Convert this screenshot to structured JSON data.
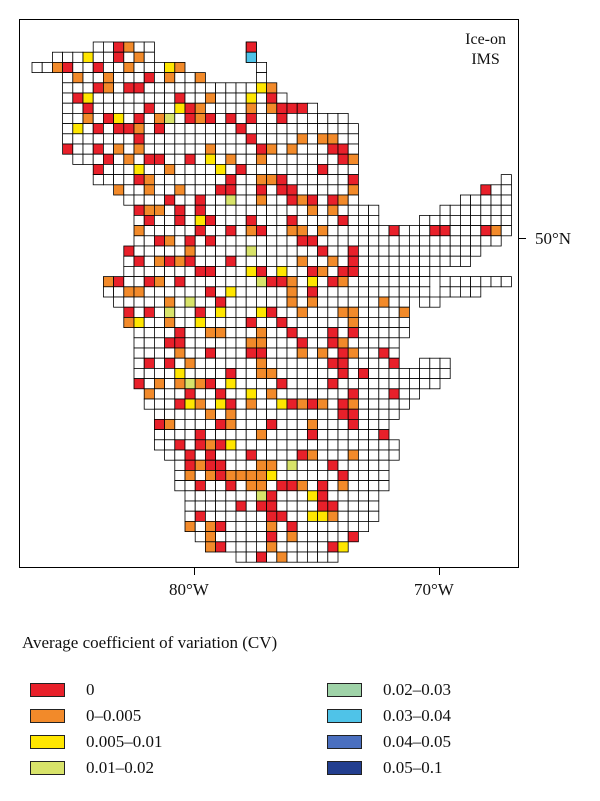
{
  "map": {
    "title_line1": "Ice-on",
    "title_line2": "IMS",
    "x_axis_labels": [
      "80°W",
      "70°W"
    ],
    "y_axis_labels": [
      "50°N"
    ]
  },
  "legend": {
    "title": "Average coefficient of variation (CV)",
    "items": [
      {
        "label": "0",
        "color": "#e8202a"
      },
      {
        "label": "0–0.005",
        "color": "#f28a2a"
      },
      {
        "label": "0.005–0.01",
        "color": "#ffe600"
      },
      {
        "label": "0.01–0.02",
        "color": "#d8e36a"
      },
      {
        "label": "0.02–0.03",
        "color": "#9fd3a8"
      },
      {
        "label": "0.03–0.04",
        "color": "#4fc3e8"
      },
      {
        "label": "0.04–0.05",
        "color": "#4a6fbf"
      },
      {
        "label": "0.05–0.1",
        "color": "#223e8f"
      }
    ]
  }
}
